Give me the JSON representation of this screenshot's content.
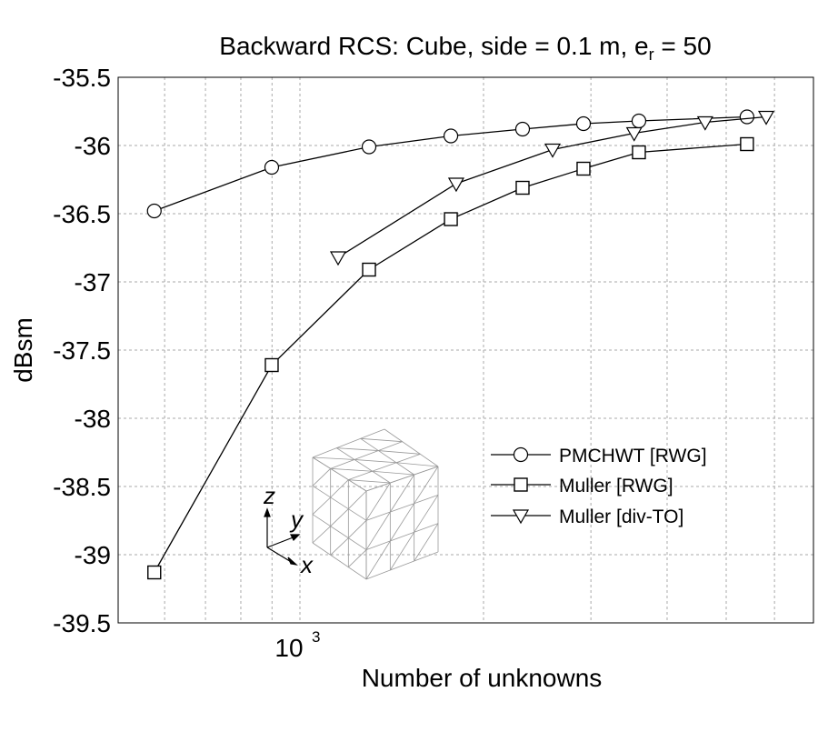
{
  "chart_data": {
    "type": "line",
    "title_main": "Backward RCS: Cube, side = 0.1 m, e",
    "title_sub": "r",
    "title_tail": " = 50",
    "xlabel": "Number of unknowns",
    "ylabel": "dBsm",
    "xscale": "log",
    "xlim": [
      500,
      7000
    ],
    "ylim": [
      -39.5,
      -35.5
    ],
    "yticks": [
      -35.5,
      -36,
      -36.5,
      -37,
      -37.5,
      -38,
      -38.5,
      -39,
      -39.5
    ],
    "ytick_labels": [
      "-35.5",
      "-36",
      "-36.5",
      "-37",
      "-37.5",
      "-38",
      "-38.5",
      "-39",
      "-39.5"
    ],
    "xtick_label_base": "10",
    "xtick_label_exp": "3",
    "xtick_value": 1000,
    "grid": true,
    "legend_position": "center-right",
    "series": [
      {
        "name": "PMCHWT [RWG]",
        "marker": "circle",
        "x": [
          577,
          899,
          1298,
          1768,
          2318,
          2917,
          3596,
          5408
        ],
        "y": [
          -36.48,
          -36.16,
          -36.01,
          -35.93,
          -35.88,
          -35.84,
          -35.82,
          -35.79
        ]
      },
      {
        "name": "Muller [RWG]",
        "marker": "square",
        "x": [
          577,
          899,
          1298,
          1768,
          2318,
          2917,
          3596,
          5408
        ],
        "y": [
          -39.13,
          -37.61,
          -36.91,
          -36.54,
          -36.31,
          -36.17,
          -36.05,
          -35.99
        ]
      },
      {
        "name": "Muller [div-TO]",
        "marker": "triangle-down",
        "x": [
          1155,
          1804,
          2596,
          3532,
          4618,
          5815
        ],
        "y": [
          -36.82,
          -36.28,
          -36.03,
          -35.91,
          -35.83,
          -35.79
        ]
      }
    ],
    "inset": {
      "axis_labels": {
        "x": "x",
        "y": "y",
        "z": "z"
      }
    }
  }
}
